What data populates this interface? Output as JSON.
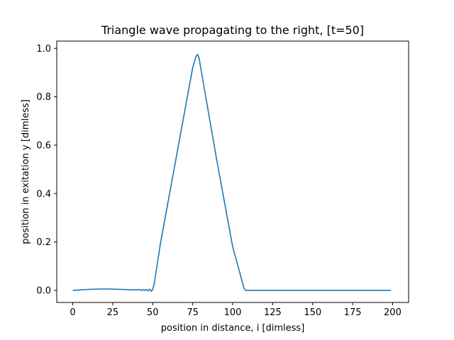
{
  "chart_data": {
    "type": "line",
    "title": "Triangle wave propagating to the right, [t=50]",
    "xlabel": "position in distance, i [dimless]",
    "ylabel": "position in exitation y [dimless]",
    "xlim": [
      -10,
      210
    ],
    "ylim": [
      -0.05,
      1.03
    ],
    "xticks": [
      0,
      25,
      50,
      75,
      100,
      125,
      150,
      175,
      200
    ],
    "xtick_labels": [
      "0",
      "25",
      "50",
      "75",
      "100",
      "125",
      "150",
      "175",
      "200"
    ],
    "yticks": [
      0.0,
      0.2,
      0.4,
      0.6,
      0.8,
      1.0
    ],
    "ytick_labels": [
      "0.0",
      "0.2",
      "0.4",
      "0.6",
      "0.8",
      "1.0"
    ],
    "grid": false,
    "series": [
      {
        "color": "#1f77b4",
        "x": [
          0,
          5,
          10,
          15,
          20,
          25,
          30,
          35,
          40,
          42,
          43,
          44,
          45,
          46,
          47,
          48,
          49,
          50,
          51,
          55,
          60,
          65,
          70,
          75,
          77,
          78,
          79,
          80,
          85,
          90,
          95,
          100,
          105,
          107,
          108,
          109,
          110,
          115,
          120,
          130,
          140,
          150,
          160,
          170,
          180,
          190,
          199
        ],
        "y": [
          0.0,
          0.002,
          0.004,
          0.005,
          0.006,
          0.005,
          0.004,
          0.003,
          0.002,
          0.004,
          -0.001,
          0.003,
          0.0,
          0.004,
          -0.002,
          0.005,
          -0.004,
          0.003,
          0.03,
          0.2,
          0.38,
          0.56,
          0.74,
          0.92,
          0.965,
          0.975,
          0.96,
          0.92,
          0.73,
          0.54,
          0.36,
          0.18,
          0.06,
          0.01,
          0.0,
          0.0,
          0.0,
          0.0,
          0.0,
          0.0,
          0.0,
          0.0,
          0.0,
          0.0,
          0.0,
          0.0,
          0.0
        ]
      }
    ]
  }
}
